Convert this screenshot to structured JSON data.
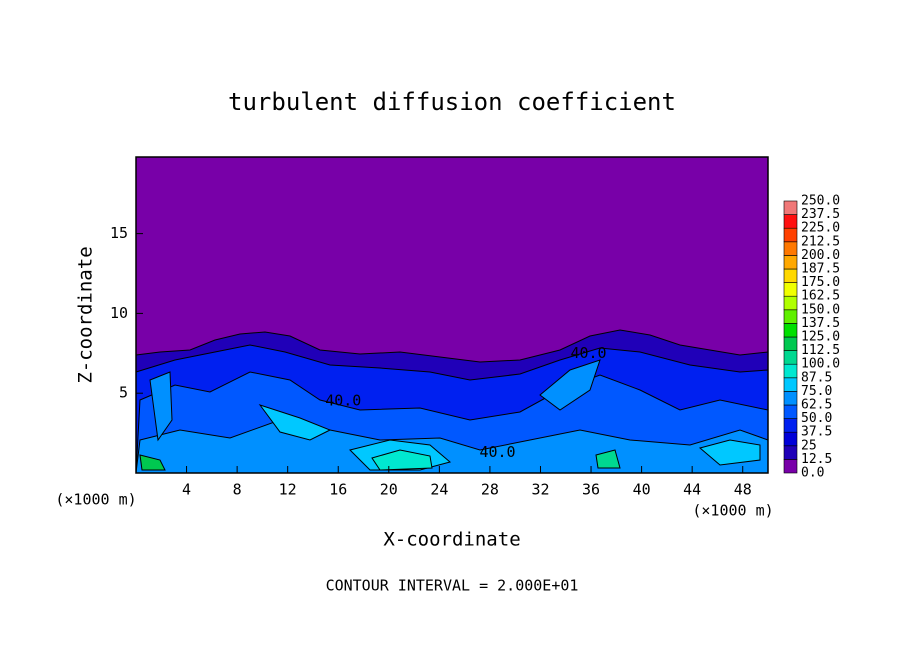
{
  "chart_data": {
    "type": "contour",
    "title": "turbulent diffusion coefficient",
    "xlabel": "X-coordinate",
    "ylabel": "Z-coordinate",
    "x_unit": "(×1000 m)",
    "y_unit": "(×1000 m)",
    "footer": "CONTOUR INTERVAL = 2.000E+01",
    "xlim": [
      0,
      50
    ],
    "ylim": [
      0,
      19.8
    ],
    "xticks": [
      4,
      8,
      12,
      16,
      20,
      24,
      28,
      32,
      36,
      40,
      44,
      48
    ],
    "yticks": [
      5,
      10,
      15
    ],
    "levels": [
      {
        "value": 0,
        "label": "0.0"
      },
      12.5,
      25.0,
      37.5,
      {
        "value": 50,
        "label": "50.0"
      },
      62.5,
      {
        "value": 75,
        "label": "75.0"
      },
      87.5,
      {
        "value": 100,
        "label": "100.0"
      },
      112.5,
      {
        "value": 125,
        "label": "125.0"
      },
      137.5,
      {
        "value": 150,
        "label": "150.0"
      },
      162.5,
      {
        "value": 175,
        "label": "175.0"
      },
      187.5,
      {
        "value": 200,
        "label": "200.0"
      },
      212.5,
      {
        "value": 225,
        "label": "225.0"
      },
      237.5,
      {
        "value": 250,
        "label": "250.0"
      }
    ],
    "colors": [
      "#7800a8",
      "#2000b8",
      "#0000d8",
      "#0020f0",
      "#0058ff",
      "#0090ff",
      "#00c8ff",
      "#00e8d0",
      "#00d890",
      "#00c850",
      "#00e000",
      "#60f000",
      "#b0ff00",
      "#f0ff00",
      "#ffd800",
      "#ffa800",
      "#ff7800",
      "#ff4000",
      "#ff1010",
      "#f07878"
    ],
    "contour_labels": [
      {
        "value": 40,
        "label": "40.0",
        "x": 35.8,
        "y": 7.5
      },
      {
        "value": 40,
        "label": "40.0",
        "x": 16.4,
        "y": 4.5
      },
      {
        "value": 40,
        "label": "40.0",
        "x": 28.6,
        "y": 1.3
      }
    ]
  }
}
